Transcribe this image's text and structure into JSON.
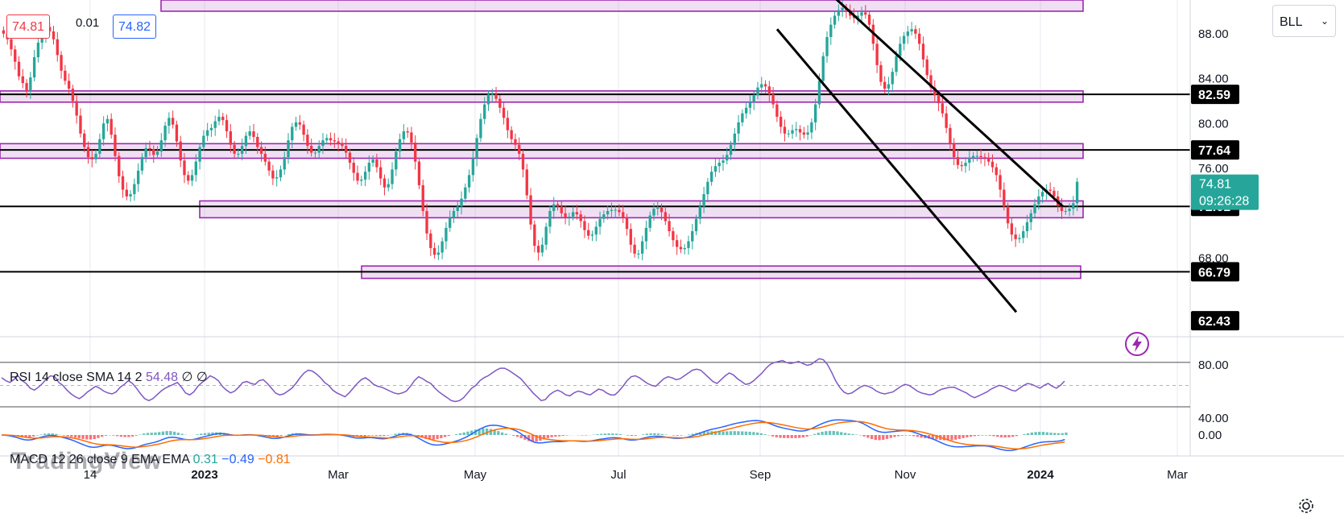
{
  "symbol": "BLL",
  "quote": {
    "sell": "74.81",
    "spread": "0.01",
    "buy": "74.82"
  },
  "price_axis": {
    "ticks": [
      "88.00",
      "84.00",
      "80.00",
      "76.00",
      "68.00"
    ],
    "current_price": "74.81",
    "countdown": "09:26:28",
    "level_labels": [
      "82.59",
      "77.64",
      "72.61",
      "66.79",
      "62.43"
    ]
  },
  "time_axis": [
    "14",
    "2023",
    "Mar",
    "May",
    "Jul",
    "Sep",
    "Nov",
    "2024",
    "Mar"
  ],
  "rsi": {
    "legend": "RSI 14 close SMA 14 2",
    "value": "54.48",
    "extra1": "∅",
    "extra2": "∅",
    "ticks": [
      "80.00",
      "40.00"
    ]
  },
  "macd": {
    "legend": "MACD 12 26 close 9 EMA EMA",
    "hist": "0.31",
    "macd": "−0.49",
    "signal": "−0.81",
    "tick": "0.00"
  },
  "watermark": "TradingView",
  "icons": {
    "settings": "gear-icon",
    "flash": "lightning-icon"
  },
  "colors": {
    "up": "#26a69a",
    "down": "#f23645",
    "zone": "#9c27b0",
    "rsi": "#7e57c2",
    "macd": "#2962ff",
    "signal": "#ff6d00",
    "price_badge": "#26a69a"
  },
  "chart_data": [
    {
      "type": "candlestick",
      "title": "",
      "ylim": [
        61,
        91
      ],
      "horizontal_levels": [
        82.59,
        77.64,
        72.61,
        66.79,
        62.43
      ],
      "zones": [
        {
          "low": 81.9,
          "high": 82.9
        },
        {
          "low": 76.9,
          "high": 78.2
        },
        {
          "low": 71.6,
          "high": 73.1
        },
        {
          "low": 66.2,
          "high": 67.3
        },
        {
          "low": 90.0,
          "high": 91.0
        }
      ],
      "descending_channel": "upper and lower parallel trend lines from Sep to Jan",
      "closes": [
        88,
        87.5,
        86.6,
        85.5,
        84.2,
        83.6,
        82.9,
        84.1,
        85.9,
        87.2,
        87.9,
        88.6,
        88.2,
        87.5,
        86.1,
        84.7,
        83.8,
        83.1,
        82,
        80.7,
        79.1,
        77.9,
        77,
        76.8,
        77.3,
        78.6,
        80,
        80.4,
        79,
        77.1,
        75.3,
        74.1,
        73.5,
        73.7,
        74.6,
        75.8,
        77,
        77.8,
        77.7,
        77.2,
        77.5,
        78.5,
        79.8,
        80.5,
        79.9,
        78.4,
        76.7,
        75.4,
        74.9,
        75.4,
        76.6,
        77.9,
        78.9,
        79.4,
        79.6,
        80.2,
        80.6,
        80.3,
        79.3,
        78.1,
        77.3,
        77.3,
        78,
        78.9,
        79.3,
        78.8,
        77.9,
        77.3,
        76.6,
        75.8,
        75.1,
        75.2,
        75.9,
        77,
        78.5,
        79.7,
        80.1,
        79.9,
        79,
        78,
        77.4,
        77.4,
        78,
        78.5,
        78.7,
        78.5,
        78.4,
        78.2,
        78,
        77.4,
        76.5,
        75.6,
        74.9,
        75,
        75.7,
        76.5,
        76.8,
        76.1,
        75.1,
        74.3,
        74.6,
        75.9,
        77.5,
        78.6,
        79.3,
        79.2,
        78.3,
        76.6,
        74.5,
        72.2,
        70.2,
        68.9,
        68.3,
        68.5,
        69.5,
        70.7,
        71.6,
        72.2,
        72.6,
        73.3,
        74.3,
        75.4,
        76.9,
        78.7,
        80.4,
        81.7,
        82.6,
        82.6,
        82.2,
        81.4,
        80.5,
        79.4,
        78.6,
        78.1,
        77.3,
        75.9,
        73.6,
        71,
        69.1,
        68.5,
        69.2,
        70.8,
        72.2,
        72.8,
        72.6,
        72,
        71.6,
        71.7,
        72.1,
        71.9,
        71.3,
        70.5,
        70,
        70.1,
        70.8,
        71.5,
        71.9,
        72.2,
        72.3,
        72.3,
        72.1,
        71.6,
        70.6,
        69.2,
        68.4,
        68.4,
        69.5,
        70.7,
        71.8,
        72.4,
        72.5,
        72.1,
        71.3,
        70.4,
        69.6,
        69,
        68.8,
        68.9,
        69.5,
        70.4,
        71.5,
        72.6,
        73.7,
        74.8,
        75.7,
        76.2,
        76.5,
        76.7,
        77.2,
        78.1,
        79.1,
        80.1,
        80.9,
        81.4,
        81.9,
        82.5,
        83.2,
        83.5,
        83.3,
        82.6,
        81.7,
        80.6,
        79.7,
        79.1,
        79.1,
        79.4,
        79.5,
        79.2,
        79,
        79.2,
        80.1,
        81.7,
        83.8,
        86,
        87.7,
        88.8,
        89.6,
        90.1,
        90.3,
        90.1,
        89.6,
        89.4,
        89.6,
        89.9,
        89.7,
        88.8,
        87.1,
        85.2,
        83.7,
        83.1,
        83.5,
        84.6,
        86,
        87.1,
        87.8,
        88.2,
        88.4,
        88,
        87.1,
        85.7,
        84.3,
        83.2,
        82.5,
        81.8,
        80.9,
        79.6,
        78.2,
        77,
        76.3,
        76.2,
        76.5,
        76.9,
        77.1,
        77.1,
        77,
        76.9,
        76.6,
        76.1,
        75.4,
        74.1,
        72.6,
        71.1,
        70.1,
        69.7,
        69.8,
        70.4,
        71.2,
        72,
        72.8,
        73.5,
        73.9,
        74.1,
        74,
        73.5,
        72.7,
        72.2,
        72.2,
        72.4,
        72.9,
        74.81
      ]
    },
    {
      "type": "line",
      "title": "RSI 14 close SMA 14 2",
      "ylim": [
        30,
        85
      ],
      "bands": [
        70,
        50,
        30
      ],
      "last_value": 54.48,
      "values": [
        58,
        55,
        53,
        56,
        60,
        55,
        52,
        47,
        45,
        48,
        52,
        57,
        60,
        59,
        53,
        50,
        45,
        41,
        38,
        36,
        39,
        43,
        46,
        49,
        47,
        44,
        42,
        41,
        43,
        48,
        51,
        55,
        52,
        47,
        41,
        36,
        34,
        36,
        40,
        44,
        47,
        49,
        51,
        53,
        48,
        42,
        40,
        43,
        49,
        53,
        56,
        60,
        58,
        55,
        49,
        45,
        42,
        44,
        48,
        53,
        54,
        52,
        51,
        55,
        56,
        52,
        47,
        42,
        40,
        41,
        44,
        47,
        52,
        58,
        63,
        66,
        65,
        62,
        58,
        53,
        50,
        45,
        42,
        40,
        38,
        42,
        47,
        52,
        56,
        58,
        55,
        51,
        49,
        48,
        46,
        44,
        42,
        41,
        42,
        44,
        49,
        55,
        59,
        57,
        54,
        52,
        47,
        43,
        40,
        37,
        34,
        33,
        34,
        37,
        42,
        47,
        50,
        55,
        58,
        60,
        63,
        66,
        68,
        68,
        66,
        63,
        60,
        57,
        52,
        47,
        42,
        38,
        34,
        35,
        40,
        43,
        45,
        43,
        40,
        39,
        42,
        44,
        43,
        41,
        40,
        43,
        46,
        45,
        42,
        40,
        40,
        44,
        49,
        55,
        59,
        60,
        58,
        55,
        52,
        50,
        49,
        53,
        57,
        59,
        58,
        56,
        57,
        60,
        63,
        66,
        67,
        66,
        62,
        58,
        54,
        52,
        56,
        60,
        63,
        61,
        57,
        54,
        51,
        52,
        55,
        59,
        63,
        68,
        72,
        74,
        75,
        76,
        74,
        73,
        74,
        75,
        73,
        71,
        72,
        75,
        78,
        77,
        72,
        64,
        55,
        48,
        43,
        41,
        42,
        45,
        48,
        50,
        49,
        47,
        44,
        42,
        41,
        42,
        43,
        46,
        49,
        51,
        50,
        47,
        44,
        42,
        41,
        40,
        41,
        44,
        46,
        47,
        48,
        48,
        46,
        44,
        42,
        39,
        37,
        39,
        41,
        43,
        46,
        48,
        50,
        49,
        47,
        45,
        44,
        47,
        50,
        52,
        51,
        49,
        47,
        50,
        52,
        49,
        47,
        50,
        54.48
      ]
    },
    {
      "type": "line",
      "title": "MACD 12 26 close 9 EMA EMA",
      "ylim": [
        -1.6,
        1.6
      ],
      "series": [
        {
          "name": "MACD",
          "last_value": -0.49
        },
        {
          "name": "Signal",
          "last_value": -0.81
        }
      ],
      "histogram_last": 0.31
    }
  ]
}
